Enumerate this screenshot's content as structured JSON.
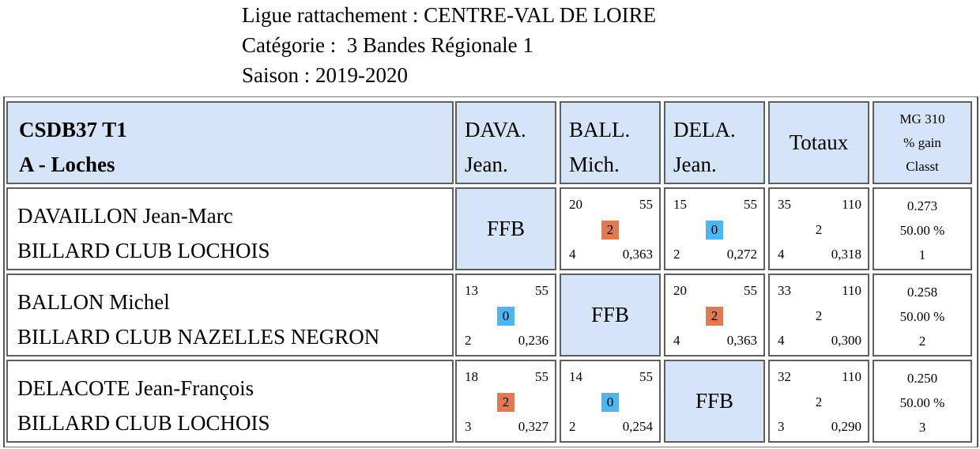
{
  "header": {
    "ligue_label": "Ligue rattachement :",
    "ligue_value": "CENTRE-VAL DE LOIRE",
    "categorie_label": "Catégorie :",
    "categorie_value": "3 Bandes Régionale 1",
    "saison_label": "Saison :",
    "saison_value": "2019-2020"
  },
  "table": {
    "team_code": "CSDB37 T1",
    "team_name": "A - Loches",
    "players_short": [
      {
        "line1": "DAVA.",
        "line2": "Jean."
      },
      {
        "line1": "BALL.",
        "line2": "Mich."
      },
      {
        "line1": "DELA.",
        "line2": "Jean."
      }
    ],
    "totals_label": "Totaux",
    "mg_header": {
      "line1": "MG 310",
      "line2": "% gain",
      "line3": "Classt"
    },
    "ffb": "FFB",
    "rows": [
      {
        "name": "DAVAILLON Jean-Marc",
        "club": "BILLARD CLUB LOCHOIS",
        "matches": [
          null,
          {
            "points": "20",
            "distance": "55",
            "result": "2",
            "reprises": "4",
            "moyenne": "0,363",
            "win": true
          },
          {
            "points": "15",
            "distance": "55",
            "result": "0",
            "reprises": "2",
            "moyenne": "0,272",
            "win": false
          }
        ],
        "totals": {
          "points": "35",
          "distance": "110",
          "result": "2",
          "reprises": "4",
          "moyenne": "0,318"
        },
        "mg": {
          "value": "0.273",
          "gain": "50.00 %",
          "rank": "1"
        }
      },
      {
        "name": "BALLON Michel",
        "club": "BILLARD CLUB NAZELLES NEGRON",
        "matches": [
          {
            "points": "13",
            "distance": "55",
            "result": "0",
            "reprises": "2",
            "moyenne": "0,236",
            "win": false
          },
          null,
          {
            "points": "20",
            "distance": "55",
            "result": "2",
            "reprises": "4",
            "moyenne": "0,363",
            "win": true
          }
        ],
        "totals": {
          "points": "33",
          "distance": "110",
          "result": "2",
          "reprises": "4",
          "moyenne": "0,300"
        },
        "mg": {
          "value": "0.258",
          "gain": "50.00 %",
          "rank": "2"
        }
      },
      {
        "name": "DELACOTE Jean-François",
        "club": "BILLARD CLUB LOCHOIS",
        "matches": [
          {
            "points": "18",
            "distance": "55",
            "result": "2",
            "reprises": "3",
            "moyenne": "0,327",
            "win": true
          },
          {
            "points": "14",
            "distance": "55",
            "result": "0",
            "reprises": "2",
            "moyenne": "0,254",
            "win": false
          },
          null
        ],
        "totals": {
          "points": "32",
          "distance": "110",
          "result": "2",
          "reprises": "3",
          "moyenne": "0,290"
        },
        "mg": {
          "value": "0.250",
          "gain": "50.00 %",
          "rank": "3"
        }
      }
    ]
  },
  "colors": {
    "header_bg": "#d6e4f7",
    "win": "#e07a55",
    "loss": "#4fb5ef"
  }
}
